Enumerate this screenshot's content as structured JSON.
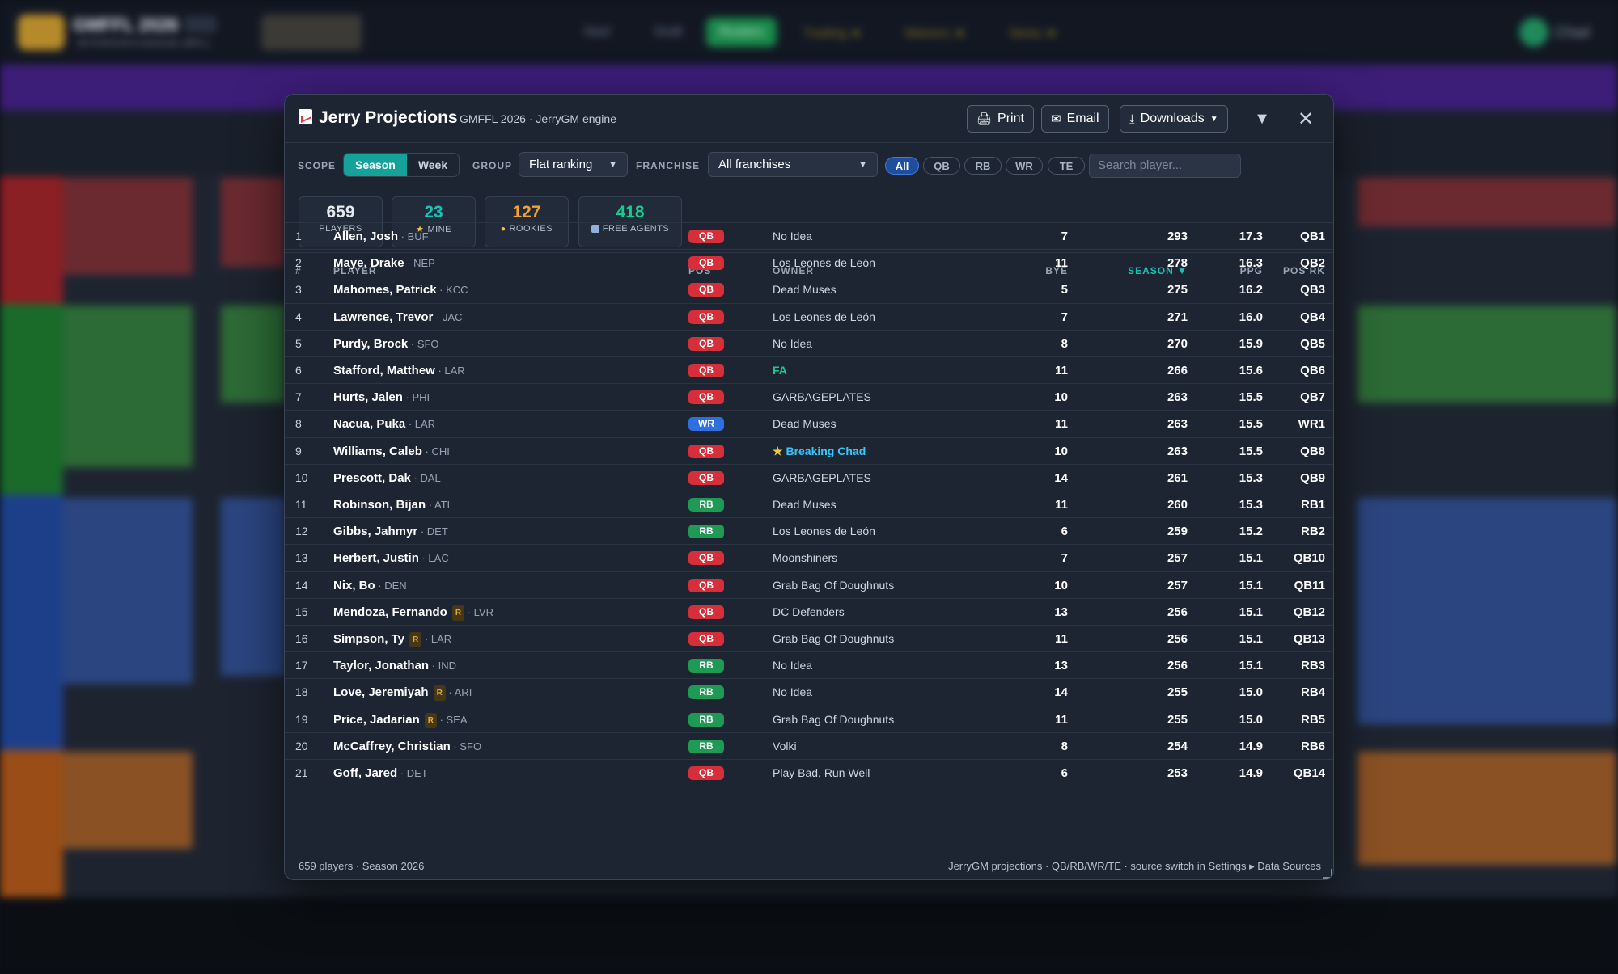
{
  "background": {
    "league_title": "GMFFL 2026",
    "league_sub": "MYFANTASYLEAGUE (MFL)",
    "nav": [
      "Start",
      "Draft",
      "Rosters",
      "Trading ★",
      "Waivers ★",
      "News ★"
    ],
    "user_name": "Chad"
  },
  "modal": {
    "title": "Jerry Projections",
    "subtitle": "GMFFL 2026 · JerryGM engine",
    "print_label": "Print",
    "email_label": "Email",
    "downloads_label": "Downloads",
    "filter_icon": "filter-icon",
    "close_icon": "close-icon"
  },
  "filters": {
    "scope_label": "SCOPE",
    "scope_options": [
      "Season",
      "Week"
    ],
    "scope_selected": "Season",
    "group_label": "GROUP",
    "group_value": "Flat ranking",
    "franchise_label": "FRANCHISE",
    "franchise_value": "All franchises",
    "positions": [
      "All",
      "QB",
      "RB",
      "WR",
      "TE"
    ],
    "position_selected": "All",
    "search_placeholder": "Search player..."
  },
  "stats": [
    {
      "value": "659",
      "label": "PLAYERS",
      "color": "#ffffff",
      "icon": ""
    },
    {
      "value": "23",
      "label": "MINE",
      "color": "#19c2b5",
      "icon": "★"
    },
    {
      "value": "127",
      "label": "ROOKIES",
      "color": "#f0a330",
      "icon": "🐣"
    },
    {
      "value": "418",
      "label": "FREE AGENTS",
      "color": "#19c98f",
      "icon": "📄"
    }
  ],
  "table": {
    "headers": {
      "rank": "#",
      "player": "PLAYER",
      "pos": "POS",
      "owner": "OWNER",
      "bye": "BYE",
      "season": "SEASON ▼",
      "ppg": "PPG",
      "posrk": "POS RK"
    },
    "position_colors": {
      "QB": "#d62f3a",
      "WR": "#2f6fe0",
      "RB": "#1e9a55",
      "TE": "#d48a1f"
    },
    "rows": [
      {
        "rank": "1",
        "name": "Allen, Josh",
        "team": "BUF",
        "rookie": false,
        "pos": "QB",
        "owner": "No Idea",
        "owner_type": "",
        "bye": "7",
        "season": "293",
        "ppg": "17.3",
        "posrk": "QB1"
      },
      {
        "rank": "2",
        "name": "Maye, Drake",
        "team": "NEP",
        "rookie": false,
        "pos": "QB",
        "owner": "Los Leones de León",
        "owner_type": "",
        "bye": "11",
        "season": "278",
        "ppg": "16.3",
        "posrk": "QB2"
      },
      {
        "rank": "3",
        "name": "Mahomes, Patrick",
        "team": "KCC",
        "rookie": false,
        "pos": "QB",
        "owner": "Dead Muses",
        "owner_type": "",
        "bye": "5",
        "season": "275",
        "ppg": "16.2",
        "posrk": "QB3"
      },
      {
        "rank": "4",
        "name": "Lawrence, Trevor",
        "team": "JAC",
        "rookie": false,
        "pos": "QB",
        "owner": "Los Leones de León",
        "owner_type": "",
        "bye": "7",
        "season": "271",
        "ppg": "16.0",
        "posrk": "QB4"
      },
      {
        "rank": "5",
        "name": "Purdy, Brock",
        "team": "SFO",
        "rookie": false,
        "pos": "QB",
        "owner": "No Idea",
        "owner_type": "",
        "bye": "8",
        "season": "270",
        "ppg": "15.9",
        "posrk": "QB5"
      },
      {
        "rank": "6",
        "name": "Stafford, Matthew",
        "team": "LAR",
        "rookie": false,
        "pos": "QB",
        "owner": "FA",
        "owner_type": "fa",
        "bye": "11",
        "season": "266",
        "ppg": "15.6",
        "posrk": "QB6"
      },
      {
        "rank": "7",
        "name": "Hurts, Jalen",
        "team": "PHI",
        "rookie": false,
        "pos": "QB",
        "owner": "GARBAGEPLATES",
        "owner_type": "",
        "bye": "10",
        "season": "263",
        "ppg": "15.5",
        "posrk": "QB7"
      },
      {
        "rank": "8",
        "name": "Nacua, Puka",
        "team": "LAR",
        "rookie": false,
        "pos": "WR",
        "owner": "Dead Muses",
        "owner_type": "",
        "bye": "11",
        "season": "263",
        "ppg": "15.5",
        "posrk": "WR1"
      },
      {
        "rank": "9",
        "name": "Williams, Caleb",
        "team": "CHI",
        "rookie": false,
        "pos": "QB",
        "owner": "Breaking Chad",
        "owner_type": "mine",
        "bye": "10",
        "season": "263",
        "ppg": "15.5",
        "posrk": "QB8"
      },
      {
        "rank": "10",
        "name": "Prescott, Dak",
        "team": "DAL",
        "rookie": false,
        "pos": "QB",
        "owner": "GARBAGEPLATES",
        "owner_type": "",
        "bye": "14",
        "season": "261",
        "ppg": "15.3",
        "posrk": "QB9"
      },
      {
        "rank": "11",
        "name": "Robinson, Bijan",
        "team": "ATL",
        "rookie": false,
        "pos": "RB",
        "owner": "Dead Muses",
        "owner_type": "",
        "bye": "11",
        "season": "260",
        "ppg": "15.3",
        "posrk": "RB1"
      },
      {
        "rank": "12",
        "name": "Gibbs, Jahmyr",
        "team": "DET",
        "rookie": false,
        "pos": "RB",
        "owner": "Los Leones de León",
        "owner_type": "",
        "bye": "6",
        "season": "259",
        "ppg": "15.2",
        "posrk": "RB2"
      },
      {
        "rank": "13",
        "name": "Herbert, Justin",
        "team": "LAC",
        "rookie": false,
        "pos": "QB",
        "owner": "Moonshiners",
        "owner_type": "",
        "bye": "7",
        "season": "257",
        "ppg": "15.1",
        "posrk": "QB10"
      },
      {
        "rank": "14",
        "name": "Nix, Bo",
        "team": "DEN",
        "rookie": false,
        "pos": "QB",
        "owner": "Grab Bag Of Doughnuts",
        "owner_type": "",
        "bye": "10",
        "season": "257",
        "ppg": "15.1",
        "posrk": "QB11"
      },
      {
        "rank": "15",
        "name": "Mendoza, Fernando",
        "team": "LVR",
        "rookie": true,
        "pos": "QB",
        "owner": "DC Defenders",
        "owner_type": "",
        "bye": "13",
        "season": "256",
        "ppg": "15.1",
        "posrk": "QB12"
      },
      {
        "rank": "16",
        "name": "Simpson, Ty",
        "team": "LAR",
        "rookie": true,
        "pos": "QB",
        "owner": "Grab Bag Of Doughnuts",
        "owner_type": "",
        "bye": "11",
        "season": "256",
        "ppg": "15.1",
        "posrk": "QB13"
      },
      {
        "rank": "17",
        "name": "Taylor, Jonathan",
        "team": "IND",
        "rookie": false,
        "pos": "RB",
        "owner": "No Idea",
        "owner_type": "",
        "bye": "13",
        "season": "256",
        "ppg": "15.1",
        "posrk": "RB3"
      },
      {
        "rank": "18",
        "name": "Love, Jeremiyah",
        "team": "ARI",
        "rookie": true,
        "pos": "RB",
        "owner": "No Idea",
        "owner_type": "",
        "bye": "14",
        "season": "255",
        "ppg": "15.0",
        "posrk": "RB4"
      },
      {
        "rank": "19",
        "name": "Price, Jadarian",
        "team": "SEA",
        "rookie": true,
        "pos": "RB",
        "owner": "Grab Bag Of Doughnuts",
        "owner_type": "",
        "bye": "11",
        "season": "255",
        "ppg": "15.0",
        "posrk": "RB5"
      },
      {
        "rank": "20",
        "name": "McCaffrey, Christian",
        "team": "SFO",
        "rookie": false,
        "pos": "RB",
        "owner": "Volki",
        "owner_type": "",
        "bye": "8",
        "season": "254",
        "ppg": "14.9",
        "posrk": "RB6"
      },
      {
        "rank": "21",
        "name": "Goff, Jared",
        "team": "DET",
        "rookie": false,
        "pos": "QB",
        "owner": "Play Bad, Run Well",
        "owner_type": "",
        "bye": "6",
        "season": "253",
        "ppg": "14.9",
        "posrk": "QB14"
      }
    ]
  },
  "footer": {
    "left": "659 players · Season 2026",
    "right": "JerryGM projections · QB/RB/WR/TE · source switch in Settings ▸ Data Sources"
  }
}
